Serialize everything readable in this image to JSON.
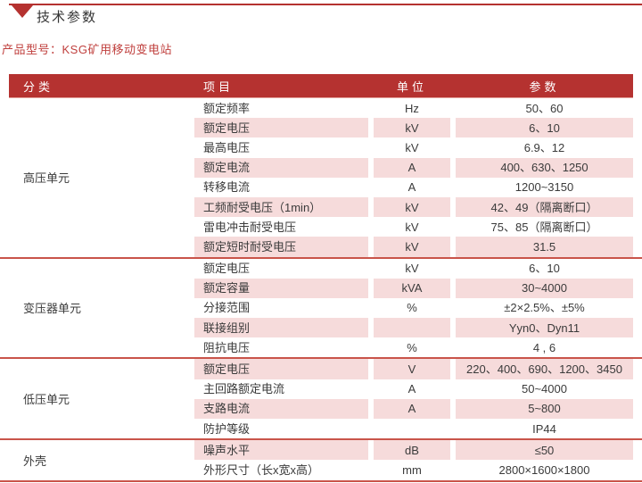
{
  "page": {
    "title": "技术参数",
    "product_label": "产品型号：KSG矿用移动变电站"
  },
  "icons": {
    "section_marker": "triangle-down-icon"
  },
  "colors": {
    "accent_red": "#b53230",
    "header_bg": "#b53230",
    "header_text": "#ffffff",
    "row_pink": "#f6dbdb",
    "divider_red": "#c9544a",
    "product_text_red": "#c0403e",
    "body_text": "#3b3b3b"
  },
  "table": {
    "headers": {
      "category": "分类",
      "item": "项目",
      "unit": "单位",
      "parameter": "参数"
    },
    "sections": [
      {
        "category": "高压单元",
        "rows": [
          {
            "item": "额定频率",
            "unit": "Hz",
            "value": "50、60"
          },
          {
            "item": "额定电压",
            "unit": "kV",
            "value": "6、10"
          },
          {
            "item": "最高电压",
            "unit": "kV",
            "value": "6.9、12"
          },
          {
            "item": "额定电流",
            "unit": "A",
            "value": "400、630、1250"
          },
          {
            "item": "转移电流",
            "unit": "A",
            "value": "1200~3150"
          },
          {
            "item": "工频耐受电压（1min）",
            "unit": "kV",
            "value": "42、49（隔离断口）"
          },
          {
            "item": "雷电冲击耐受电压",
            "unit": "kV",
            "value": "75、85（隔离断口）"
          },
          {
            "item": "额定短时耐受电压",
            "unit": "kV",
            "value": "31.5"
          }
        ]
      },
      {
        "category": "变压器单元",
        "rows": [
          {
            "item": "额定电压",
            "unit": "kV",
            "value": "6、10"
          },
          {
            "item": "额定容量",
            "unit": "kVA",
            "value": "30~4000"
          },
          {
            "item": "分接范围",
            "unit": "%",
            "value": "±2×2.5%、±5%"
          },
          {
            "item": "联接组别",
            "unit": "",
            "value": "Yyn0、Dyn11"
          },
          {
            "item": "阻抗电压",
            "unit": "%",
            "value": "4 , 6"
          }
        ]
      },
      {
        "category": "低压单元",
        "rows": [
          {
            "item": "额定电压",
            "unit": "V",
            "value": "220、400、690、1200、3450"
          },
          {
            "item": "主回路额定电流",
            "unit": "A",
            "value": "50~4000"
          },
          {
            "item": "支路电流",
            "unit": "A",
            "value": "5~800"
          },
          {
            "item": "防护等级",
            "unit": "",
            "value": "IP44"
          }
        ]
      },
      {
        "category": "外壳",
        "rows": [
          {
            "item": "噪声水平",
            "unit": "dB",
            "value": "≤50"
          },
          {
            "item": "外形尺寸（长x宽x高）",
            "unit": "mm",
            "value": "2800×1600×1800"
          }
        ]
      }
    ]
  }
}
